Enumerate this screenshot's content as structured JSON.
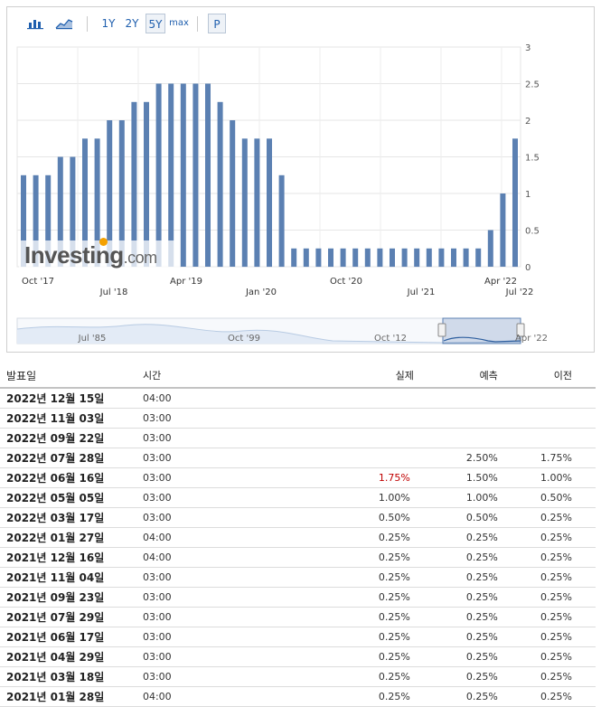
{
  "toolbar": {
    "range_buttons": [
      "1Y",
      "2Y",
      "5Y",
      "max"
    ],
    "selected_range": "5Y",
    "p_button": "P",
    "icons": [
      "bar-chart-icon",
      "area-chart-icon"
    ]
  },
  "chart_data": {
    "type": "bar",
    "color": "#5b80b2",
    "x_tick_labels_row1": [
      "Oct '17",
      "Apr '19",
      "Oct '20",
      "Apr '22"
    ],
    "x_tick_labels_row2": [
      "Jul '18",
      "Jan '20",
      "Jul '21",
      "Jul '22"
    ],
    "y_ticks": [
      "0",
      "0.5",
      "1",
      "1.5",
      "2",
      "2.5",
      "3"
    ],
    "ylim": [
      0,
      3
    ],
    "values": [
      1.25,
      1.25,
      1.25,
      1.5,
      1.5,
      1.75,
      1.75,
      2.0,
      2.0,
      2.25,
      2.25,
      2.5,
      2.5,
      2.5,
      2.5,
      2.5,
      2.25,
      2.0,
      1.75,
      1.75,
      1.75,
      1.25,
      0.25,
      0.25,
      0.25,
      0.25,
      0.25,
      0.25,
      0.25,
      0.25,
      0.25,
      0.25,
      0.25,
      0.25,
      0.25,
      0.25,
      0.25,
      0.25,
      0.5,
      1.0,
      1.75
    ],
    "navigator_labels": [
      "Jul '85",
      "Oct '99",
      "Oct '12",
      "Apr '22"
    ],
    "watermark": {
      "brand": "Investing",
      "suffix": ".com"
    }
  },
  "table": {
    "headers": {
      "date": "발표일",
      "time": "시간",
      "actual": "실제",
      "forecast": "예측",
      "previous": "이전"
    },
    "rows": [
      {
        "date": "2022년 12월 15일",
        "time": "04:00",
        "actual": "",
        "forecast": "",
        "previous": ""
      },
      {
        "date": "2022년 11월 03일",
        "time": "03:00",
        "actual": "",
        "forecast": "",
        "previous": ""
      },
      {
        "date": "2022년 09월 22일",
        "time": "03:00",
        "actual": "",
        "forecast": "",
        "previous": ""
      },
      {
        "date": "2022년 07월 28일",
        "time": "03:00",
        "actual": "",
        "forecast": "2.50%",
        "previous": "1.75%"
      },
      {
        "date": "2022년 06월 16일",
        "time": "03:00",
        "actual": "1.75%",
        "forecast": "1.50%",
        "previous": "1.00%",
        "actual_color": "#c00000"
      },
      {
        "date": "2022년 05월 05일",
        "time": "03:00",
        "actual": "1.00%",
        "forecast": "1.00%",
        "previous": "0.50%"
      },
      {
        "date": "2022년 03월 17일",
        "time": "03:00",
        "actual": "0.50%",
        "forecast": "0.50%",
        "previous": "0.25%"
      },
      {
        "date": "2022년 01월 27일",
        "time": "04:00",
        "actual": "0.25%",
        "forecast": "0.25%",
        "previous": "0.25%"
      },
      {
        "date": "2021년 12월 16일",
        "time": "04:00",
        "actual": "0.25%",
        "forecast": "0.25%",
        "previous": "0.25%"
      },
      {
        "date": "2021년 11월 04일",
        "time": "03:00",
        "actual": "0.25%",
        "forecast": "0.25%",
        "previous": "0.25%"
      },
      {
        "date": "2021년 09월 23일",
        "time": "03:00",
        "actual": "0.25%",
        "forecast": "0.25%",
        "previous": "0.25%"
      },
      {
        "date": "2021년 07월 29일",
        "time": "03:00",
        "actual": "0.25%",
        "forecast": "0.25%",
        "previous": "0.25%"
      },
      {
        "date": "2021년 06월 17일",
        "time": "03:00",
        "actual": "0.25%",
        "forecast": "0.25%",
        "previous": "0.25%"
      },
      {
        "date": "2021년 04월 29일",
        "time": "03:00",
        "actual": "0.25%",
        "forecast": "0.25%",
        "previous": "0.25%"
      },
      {
        "date": "2021년 03월 18일",
        "time": "03:00",
        "actual": "0.25%",
        "forecast": "0.25%",
        "previous": "0.25%"
      },
      {
        "date": "2021년 01월 28일",
        "time": "04:00",
        "actual": "0.25%",
        "forecast": "0.25%",
        "previous": "0.25%"
      }
    ]
  }
}
